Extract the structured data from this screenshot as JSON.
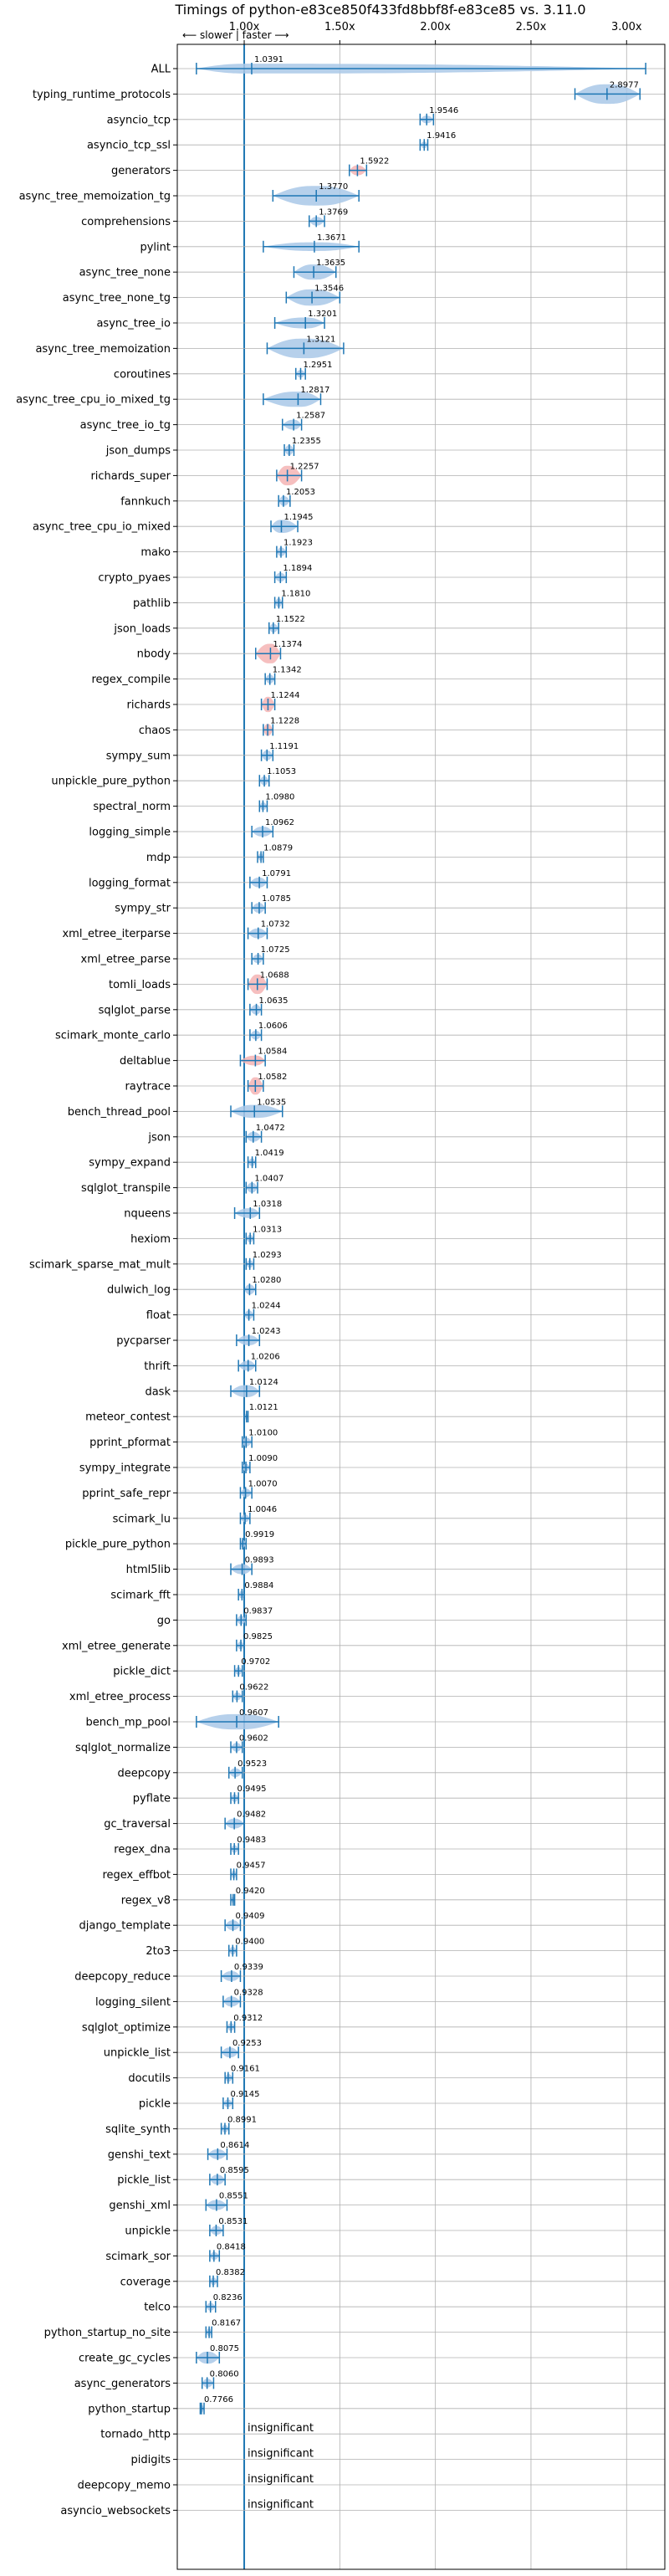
{
  "chart_data": {
    "type": "violin",
    "title": "Timings of python-e83ce850f433fd8bbf8f-e83ce85 vs. 3.11.0",
    "direction_note": "⟵ slower  |  faster ⟶",
    "xlim": [
      0.65,
      3.2
    ],
    "reference_line": 1.0,
    "x_ticks": [
      1.0,
      1.5,
      2.0,
      2.5,
      3.0
    ],
    "x_tick_labels": [
      "1.00x",
      "1.50x",
      "2.00x",
      "2.50x",
      "3.00x"
    ],
    "grid": true,
    "series": [
      {
        "name": "ALL",
        "value": 1.0391,
        "label": "1.0391",
        "min": 0.75,
        "max": 3.1,
        "width": 0.45,
        "color": "blue"
      },
      {
        "name": "typing_runtime_protocols",
        "value": 2.8977,
        "label": "2.8977",
        "min": 2.73,
        "max": 3.07,
        "width": 0.9,
        "color": "blue"
      },
      {
        "name": "asyncio_tcp",
        "value": 1.9546,
        "label": "1.9546",
        "min": 1.92,
        "max": 1.99,
        "width": 0.35,
        "color": "blue"
      },
      {
        "name": "asyncio_tcp_ssl",
        "value": 1.9416,
        "label": "1.9416",
        "min": 1.92,
        "max": 1.96,
        "width": 0.3,
        "color": "blue"
      },
      {
        "name": "generators",
        "value": 1.5922,
        "label": "1.5922",
        "min": 1.55,
        "max": 1.64,
        "width": 0.45,
        "color": "red"
      },
      {
        "name": "async_tree_memoization_tg",
        "value": 1.377,
        "label": "1.3770",
        "min": 1.15,
        "max": 1.6,
        "width": 0.9,
        "color": "blue"
      },
      {
        "name": "comprehensions",
        "value": 1.3769,
        "label": "1.3769",
        "min": 1.34,
        "max": 1.42,
        "width": 0.4,
        "color": "blue"
      },
      {
        "name": "pylint",
        "value": 1.3671,
        "label": "1.3671",
        "min": 1.1,
        "max": 1.6,
        "width": 0.4,
        "color": "blue"
      },
      {
        "name": "async_tree_none",
        "value": 1.3635,
        "label": "1.3635",
        "min": 1.26,
        "max": 1.48,
        "width": 0.7,
        "color": "blue"
      },
      {
        "name": "async_tree_none_tg",
        "value": 1.3546,
        "label": "1.3546",
        "min": 1.22,
        "max": 1.5,
        "width": 0.75,
        "color": "blue"
      },
      {
        "name": "async_tree_io",
        "value": 1.3201,
        "label": "1.3201",
        "min": 1.16,
        "max": 1.42,
        "width": 0.5,
        "color": "blue"
      },
      {
        "name": "async_tree_memoization",
        "value": 1.3121,
        "label": "1.3121",
        "min": 1.12,
        "max": 1.52,
        "width": 0.9,
        "color": "blue"
      },
      {
        "name": "coroutines",
        "value": 1.2951,
        "label": "1.2951",
        "min": 1.27,
        "max": 1.32,
        "width": 0.35,
        "color": "blue"
      },
      {
        "name": "async_tree_cpu_io_mixed_tg",
        "value": 1.2817,
        "label": "1.2817",
        "min": 1.1,
        "max": 1.4,
        "width": 0.7,
        "color": "blue"
      },
      {
        "name": "async_tree_io_tg",
        "value": 1.2587,
        "label": "1.2587",
        "min": 1.2,
        "max": 1.3,
        "width": 0.45,
        "color": "blue"
      },
      {
        "name": "json_dumps",
        "value": 1.2355,
        "label": "1.2355",
        "min": 1.21,
        "max": 1.26,
        "width": 0.45,
        "color": "blue"
      },
      {
        "name": "richards_super",
        "value": 1.2257,
        "label": "1.2257",
        "min": 1.17,
        "max": 1.3,
        "width": 0.9,
        "color": "red"
      },
      {
        "name": "fannkuch",
        "value": 1.2053,
        "label": "1.2053",
        "min": 1.18,
        "max": 1.24,
        "width": 0.45,
        "color": "blue"
      },
      {
        "name": "async_tree_cpu_io_mixed",
        "value": 1.1945,
        "label": "1.1945",
        "min": 1.14,
        "max": 1.28,
        "width": 0.6,
        "color": "blue"
      },
      {
        "name": "mako",
        "value": 1.1923,
        "label": "1.1923",
        "min": 1.17,
        "max": 1.22,
        "width": 0.4,
        "color": "blue"
      },
      {
        "name": "crypto_pyaes",
        "value": 1.1894,
        "label": "1.1894",
        "min": 1.16,
        "max": 1.22,
        "width": 0.4,
        "color": "blue"
      },
      {
        "name": "pathlib",
        "value": 1.181,
        "label": "1.1810",
        "min": 1.16,
        "max": 1.2,
        "width": 0.4,
        "color": "blue"
      },
      {
        "name": "json_loads",
        "value": 1.1522,
        "label": "1.1522",
        "min": 1.13,
        "max": 1.18,
        "width": 0.4,
        "color": "blue"
      },
      {
        "name": "nbody",
        "value": 1.1374,
        "label": "1.1374",
        "min": 1.06,
        "max": 1.19,
        "width": 0.9,
        "color": "red"
      },
      {
        "name": "regex_compile",
        "value": 1.1342,
        "label": "1.1342",
        "min": 1.11,
        "max": 1.16,
        "width": 0.4,
        "color": "blue"
      },
      {
        "name": "richards",
        "value": 1.1244,
        "label": "1.1244",
        "min": 1.09,
        "max": 1.16,
        "width": 0.7,
        "color": "red"
      },
      {
        "name": "chaos",
        "value": 1.1228,
        "label": "1.1228",
        "min": 1.1,
        "max": 1.15,
        "width": 0.55,
        "color": "red"
      },
      {
        "name": "sympy_sum",
        "value": 1.1191,
        "label": "1.1191",
        "min": 1.09,
        "max": 1.15,
        "width": 0.45,
        "color": "blue"
      },
      {
        "name": "unpickle_pure_python",
        "value": 1.1053,
        "label": "1.1053",
        "min": 1.08,
        "max": 1.13,
        "width": 0.4,
        "color": "blue"
      },
      {
        "name": "spectral_norm",
        "value": 1.098,
        "label": "1.0980",
        "min": 1.08,
        "max": 1.12,
        "width": 0.35,
        "color": "blue"
      },
      {
        "name": "logging_simple",
        "value": 1.0962,
        "label": "1.0962",
        "min": 1.04,
        "max": 1.15,
        "width": 0.45,
        "color": "blue"
      },
      {
        "name": "mdp",
        "value": 1.0879,
        "label": "1.0879",
        "min": 1.07,
        "max": 1.1,
        "width": 0.35,
        "color": "blue"
      },
      {
        "name": "logging_format",
        "value": 1.0791,
        "label": "1.0791",
        "min": 1.03,
        "max": 1.12,
        "width": 0.45,
        "color": "blue"
      },
      {
        "name": "sympy_str",
        "value": 1.0785,
        "label": "1.0785",
        "min": 1.04,
        "max": 1.11,
        "width": 0.45,
        "color": "blue"
      },
      {
        "name": "xml_etree_iterparse",
        "value": 1.0732,
        "label": "1.0732",
        "min": 1.02,
        "max": 1.12,
        "width": 0.45,
        "color": "blue"
      },
      {
        "name": "xml_etree_parse",
        "value": 1.0725,
        "label": "1.0725",
        "min": 1.04,
        "max": 1.1,
        "width": 0.4,
        "color": "blue"
      },
      {
        "name": "tomli_loads",
        "value": 1.0688,
        "label": "1.0688",
        "min": 1.02,
        "max": 1.12,
        "width": 0.9,
        "color": "red"
      },
      {
        "name": "sqlglot_parse",
        "value": 1.0635,
        "label": "1.0635",
        "min": 1.03,
        "max": 1.09,
        "width": 0.45,
        "color": "blue"
      },
      {
        "name": "scimark_monte_carlo",
        "value": 1.0606,
        "label": "1.0606",
        "min": 1.03,
        "max": 1.09,
        "width": 0.4,
        "color": "blue"
      },
      {
        "name": "deltablue",
        "value": 1.0584,
        "label": "1.0584",
        "min": 0.98,
        "max": 1.11,
        "width": 0.45,
        "color": "red"
      },
      {
        "name": "raytrace",
        "value": 1.0582,
        "label": "1.0582",
        "min": 1.02,
        "max": 1.1,
        "width": 0.8,
        "color": "red"
      },
      {
        "name": "bench_thread_pool",
        "value": 1.0535,
        "label": "1.0535",
        "min": 0.93,
        "max": 1.2,
        "width": 0.6,
        "color": "blue"
      },
      {
        "name": "json",
        "value": 1.0472,
        "label": "1.0472",
        "min": 1.01,
        "max": 1.09,
        "width": 0.45,
        "color": "blue"
      },
      {
        "name": "sympy_expand",
        "value": 1.0419,
        "label": "1.0419",
        "min": 1.02,
        "max": 1.06,
        "width": 0.35,
        "color": "blue"
      },
      {
        "name": "sqlglot_transpile",
        "value": 1.0407,
        "label": "1.0407",
        "min": 1.01,
        "max": 1.07,
        "width": 0.45,
        "color": "blue"
      },
      {
        "name": "nqueens",
        "value": 1.0318,
        "label": "1.0318",
        "min": 0.95,
        "max": 1.08,
        "width": 0.45,
        "color": "blue"
      },
      {
        "name": "hexiom",
        "value": 1.0313,
        "label": "1.0313",
        "min": 1.01,
        "max": 1.05,
        "width": 0.35,
        "color": "blue"
      },
      {
        "name": "scimark_sparse_mat_mult",
        "value": 1.0293,
        "label": "1.0293",
        "min": 1.01,
        "max": 1.05,
        "width": 0.35,
        "color": "blue"
      },
      {
        "name": "dulwich_log",
        "value": 1.028,
        "label": "1.0280",
        "min": 1.0,
        "max": 1.06,
        "width": 0.45,
        "color": "blue"
      },
      {
        "name": "float",
        "value": 1.0244,
        "label": "1.0244",
        "min": 1.0,
        "max": 1.05,
        "width": 0.4,
        "color": "blue"
      },
      {
        "name": "pycparser",
        "value": 1.0243,
        "label": "1.0243",
        "min": 0.96,
        "max": 1.08,
        "width": 0.45,
        "color": "blue"
      },
      {
        "name": "thrift",
        "value": 1.0206,
        "label": "1.0206",
        "min": 0.97,
        "max": 1.06,
        "width": 0.45,
        "color": "blue"
      },
      {
        "name": "dask",
        "value": 1.0124,
        "label": "1.0124",
        "min": 0.93,
        "max": 1.08,
        "width": 0.55,
        "color": "blue"
      },
      {
        "name": "meteor_contest",
        "value": 1.0121,
        "label": "1.0121",
        "min": 1.0,
        "max": 1.02,
        "width": 0.3,
        "color": "blue"
      },
      {
        "name": "pprint_pformat",
        "value": 1.01,
        "label": "1.0100",
        "min": 0.99,
        "max": 1.04,
        "width": 0.4,
        "color": "blue"
      },
      {
        "name": "sympy_integrate",
        "value": 1.009,
        "label": "1.0090",
        "min": 0.99,
        "max": 1.03,
        "width": 0.35,
        "color": "blue"
      },
      {
        "name": "pprint_safe_repr",
        "value": 1.007,
        "label": "1.0070",
        "min": 0.98,
        "max": 1.04,
        "width": 0.4,
        "color": "blue"
      },
      {
        "name": "scimark_lu",
        "value": 1.0046,
        "label": "1.0046",
        "min": 0.98,
        "max": 1.03,
        "width": 0.35,
        "color": "blue"
      },
      {
        "name": "pickle_pure_python",
        "value": 0.9919,
        "label": "0.9919",
        "min": 0.98,
        "max": 1.01,
        "width": 0.35,
        "color": "blue"
      },
      {
        "name": "html5lib",
        "value": 0.9893,
        "label": "0.9893",
        "min": 0.93,
        "max": 1.04,
        "width": 0.45,
        "color": "blue"
      },
      {
        "name": "scimark_fft",
        "value": 0.9884,
        "label": "0.9884",
        "min": 0.97,
        "max": 1.0,
        "width": 0.35,
        "color": "blue"
      },
      {
        "name": "go",
        "value": 0.9837,
        "label": "0.9837",
        "min": 0.96,
        "max": 1.01,
        "width": 0.4,
        "color": "blue"
      },
      {
        "name": "xml_etree_generate",
        "value": 0.9825,
        "label": "0.9825",
        "min": 0.96,
        "max": 1.0,
        "width": 0.35,
        "color": "blue"
      },
      {
        "name": "pickle_dict",
        "value": 0.9702,
        "label": "0.9702",
        "min": 0.95,
        "max": 0.99,
        "width": 0.35,
        "color": "blue"
      },
      {
        "name": "xml_etree_process",
        "value": 0.9622,
        "label": "0.9622",
        "min": 0.94,
        "max": 0.99,
        "width": 0.35,
        "color": "blue"
      },
      {
        "name": "bench_mp_pool",
        "value": 0.9607,
        "label": "0.9607",
        "min": 0.75,
        "max": 1.18,
        "width": 0.7,
        "color": "blue"
      },
      {
        "name": "sqlglot_normalize",
        "value": 0.9602,
        "label": "0.9602",
        "min": 0.93,
        "max": 0.99,
        "width": 0.4,
        "color": "blue"
      },
      {
        "name": "deepcopy",
        "value": 0.9523,
        "label": "0.9523",
        "min": 0.92,
        "max": 0.99,
        "width": 0.4,
        "color": "blue"
      },
      {
        "name": "pyflate",
        "value": 0.9495,
        "label": "0.9495",
        "min": 0.93,
        "max": 0.97,
        "width": 0.35,
        "color": "blue"
      },
      {
        "name": "gc_traversal",
        "value": 0.9482,
        "label": "0.9482",
        "min": 0.9,
        "max": 1.0,
        "width": 0.45,
        "color": "blue"
      },
      {
        "name": "regex_dna",
        "value": 0.9483,
        "label": "0.9483",
        "min": 0.93,
        "max": 0.97,
        "width": 0.35,
        "color": "blue"
      },
      {
        "name": "regex_effbot",
        "value": 0.9457,
        "label": "0.9457",
        "min": 0.93,
        "max": 0.96,
        "width": 0.35,
        "color": "blue"
      },
      {
        "name": "regex_v8",
        "value": 0.942,
        "label": "0.9420",
        "min": 0.93,
        "max": 0.95,
        "width": 0.3,
        "color": "blue"
      },
      {
        "name": "django_template",
        "value": 0.9409,
        "label": "0.9409",
        "min": 0.9,
        "max": 0.98,
        "width": 0.45,
        "color": "blue"
      },
      {
        "name": "2to3",
        "value": 0.94,
        "label": "0.9400",
        "min": 0.92,
        "max": 0.96,
        "width": 0.35,
        "color": "blue"
      },
      {
        "name": "deepcopy_reduce",
        "value": 0.9339,
        "label": "0.9339",
        "min": 0.88,
        "max": 0.98,
        "width": 0.45,
        "color": "blue"
      },
      {
        "name": "logging_silent",
        "value": 0.9328,
        "label": "0.9328",
        "min": 0.89,
        "max": 0.98,
        "width": 0.45,
        "color": "blue"
      },
      {
        "name": "sqlglot_optimize",
        "value": 0.9312,
        "label": "0.9312",
        "min": 0.91,
        "max": 0.95,
        "width": 0.35,
        "color": "blue"
      },
      {
        "name": "unpickle_list",
        "value": 0.9253,
        "label": "0.9253",
        "min": 0.88,
        "max": 0.97,
        "width": 0.45,
        "color": "blue"
      },
      {
        "name": "docutils",
        "value": 0.9161,
        "label": "0.9161",
        "min": 0.9,
        "max": 0.94,
        "width": 0.35,
        "color": "blue"
      },
      {
        "name": "pickle",
        "value": 0.9145,
        "label": "0.9145",
        "min": 0.89,
        "max": 0.94,
        "width": 0.35,
        "color": "blue"
      },
      {
        "name": "sqlite_synth",
        "value": 0.8991,
        "label": "0.8991",
        "min": 0.88,
        "max": 0.92,
        "width": 0.35,
        "color": "blue"
      },
      {
        "name": "genshi_text",
        "value": 0.8614,
        "label": "0.8614",
        "min": 0.81,
        "max": 0.91,
        "width": 0.45,
        "color": "blue"
      },
      {
        "name": "pickle_list",
        "value": 0.8595,
        "label": "0.8595",
        "min": 0.82,
        "max": 0.9,
        "width": 0.45,
        "color": "blue"
      },
      {
        "name": "genshi_xml",
        "value": 0.8551,
        "label": "0.8551",
        "min": 0.8,
        "max": 0.91,
        "width": 0.45,
        "color": "blue"
      },
      {
        "name": "unpickle",
        "value": 0.8531,
        "label": "0.8531",
        "min": 0.82,
        "max": 0.89,
        "width": 0.4,
        "color": "blue"
      },
      {
        "name": "scimark_sor",
        "value": 0.8418,
        "label": "0.8418",
        "min": 0.82,
        "max": 0.87,
        "width": 0.35,
        "color": "blue"
      },
      {
        "name": "coverage",
        "value": 0.8382,
        "label": "0.8382",
        "min": 0.82,
        "max": 0.86,
        "width": 0.35,
        "color": "blue"
      },
      {
        "name": "telco",
        "value": 0.8236,
        "label": "0.8236",
        "min": 0.8,
        "max": 0.85,
        "width": 0.35,
        "color": "blue"
      },
      {
        "name": "python_startup_no_site",
        "value": 0.8167,
        "label": "0.8167",
        "min": 0.8,
        "max": 0.83,
        "width": 0.35,
        "color": "blue"
      },
      {
        "name": "create_gc_cycles",
        "value": 0.8075,
        "label": "0.8075",
        "min": 0.75,
        "max": 0.87,
        "width": 0.55,
        "color": "blue"
      },
      {
        "name": "async_generators",
        "value": 0.806,
        "label": "0.8060",
        "min": 0.78,
        "max": 0.84,
        "width": 0.4,
        "color": "blue"
      },
      {
        "name": "python_startup",
        "value": 0.7766,
        "label": "0.7766",
        "min": 0.77,
        "max": 0.79,
        "width": 0.35,
        "color": "blue"
      },
      {
        "name": "tornado_http",
        "value": null,
        "label": "insignificant"
      },
      {
        "name": "pidigits",
        "value": null,
        "label": "insignificant"
      },
      {
        "name": "deepcopy_memo",
        "value": null,
        "label": "insignificant"
      },
      {
        "name": "asyncio_websockets",
        "value": null,
        "label": "insignificant"
      }
    ]
  },
  "colors": {
    "violin_blue": "#a9c8e8",
    "violin_red": "#f4b4b4",
    "marker": "#1f77b4",
    "grid": "#b0b0b0",
    "axis": "#000000",
    "text": "#000000"
  }
}
